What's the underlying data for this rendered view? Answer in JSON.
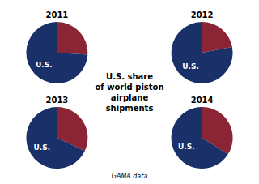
{
  "chart_data": {
    "type": "pie",
    "title": "U.S. share\nof world piston\nairplane\nshipments",
    "annotations": [
      "GAMA data"
    ],
    "categories": [
      null,
      "U.S."
    ],
    "series": [
      {
        "name": "2011",
        "values": [
          0.26,
          0.74
        ],
        "colors": [
          "#8b2535",
          "#1a3068"
        ]
      },
      {
        "name": "2012",
        "values": [
          0.22,
          0.78
        ],
        "colors": [
          "#8b2535",
          "#1a3068"
        ]
      },
      {
        "name": "2013",
        "values": [
          0.32,
          0.68
        ],
        "colors": [
          "#8b2535",
          "#1a3068"
        ]
      },
      {
        "name": "2014",
        "values": [
          0.34,
          0.66
        ],
        "colors": [
          "#8b2535",
          "#1a3068"
        ]
      }
    ]
  }
}
